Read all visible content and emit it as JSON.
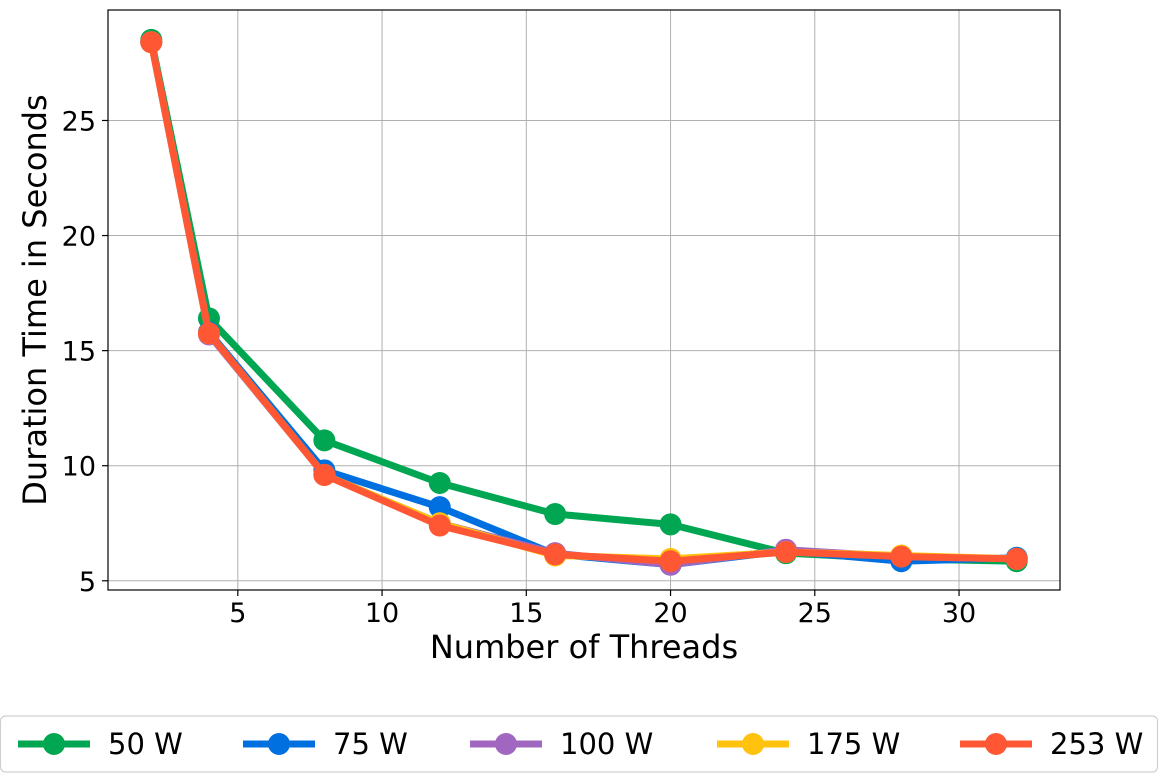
{
  "chart_data": {
    "type": "line",
    "xlabel": "Number of Threads",
    "ylabel": "Duration Time in Seconds",
    "xlim": [
      0.5,
      33.5
    ],
    "ylim": [
      4.6,
      29.8
    ],
    "xticks": [
      5,
      10,
      15,
      20,
      25,
      30
    ],
    "yticks": [
      5,
      10,
      15,
      20,
      25
    ],
    "grid": true,
    "legend_position": "bottom-center",
    "x": [
      2,
      4,
      8,
      12,
      16,
      20,
      24,
      28,
      32
    ],
    "series": [
      {
        "name": "50 W",
        "color": "#00a651",
        "values": [
          28.5,
          16.4,
          11.1,
          9.25,
          7.9,
          7.45,
          6.2,
          5.95,
          5.85
        ]
      },
      {
        "name": "75 W",
        "color": "#0070e0",
        "values": [
          28.4,
          15.8,
          9.8,
          8.2,
          6.15,
          5.7,
          6.3,
          5.85,
          6.0
        ]
      },
      {
        "name": "100 W",
        "color": "#a066c0",
        "values": [
          28.4,
          15.7,
          9.6,
          7.5,
          6.2,
          5.7,
          6.35,
          6.05,
          5.95
        ]
      },
      {
        "name": "175 W",
        "color": "#ffc20e",
        "values": [
          28.4,
          15.75,
          9.6,
          7.5,
          6.1,
          5.95,
          6.25,
          6.1,
          5.95
        ]
      },
      {
        "name": "253 W",
        "color": "#ff5733",
        "values": [
          28.4,
          15.75,
          9.6,
          7.4,
          6.15,
          5.85,
          6.25,
          6.05,
          5.95
        ]
      }
    ]
  }
}
